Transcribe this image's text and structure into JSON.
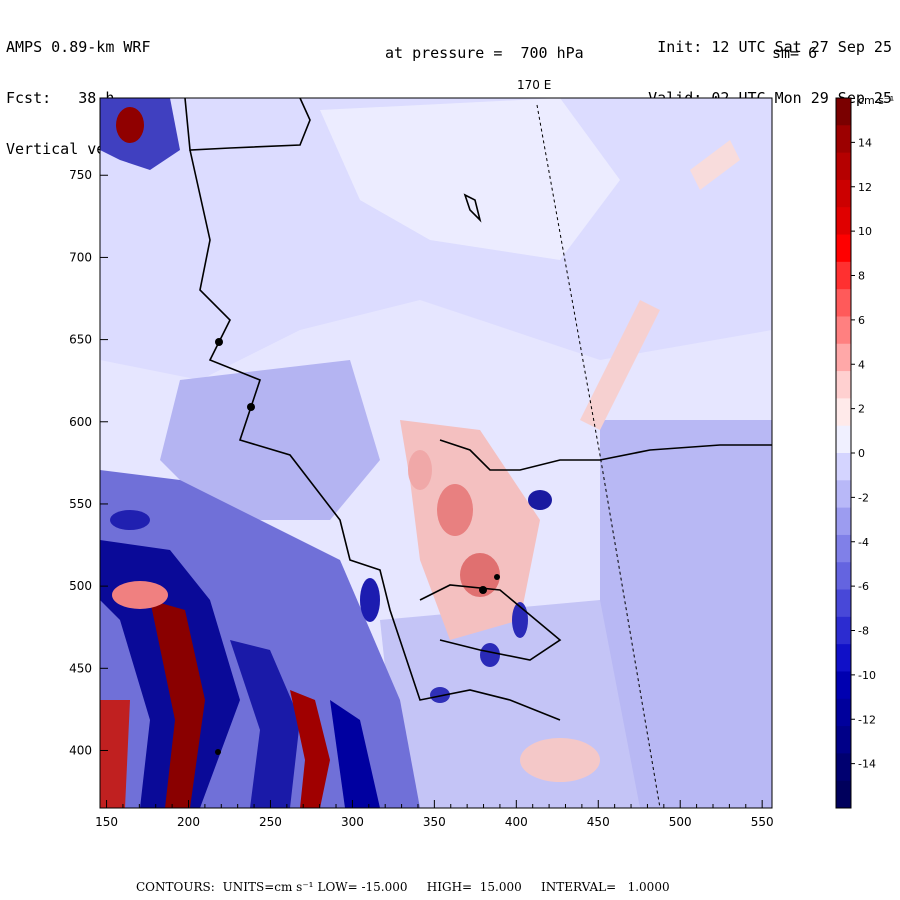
{
  "header": {
    "model": "AMPS 0.89-km WRF",
    "forecast_label": "Fcst:",
    "forecast_hours": "38 h",
    "field": "Vertical velocity",
    "init": "Init: 12 UTC Sat 27 Sep 25",
    "valid": "Valid: 02 UTC Mon 29 Sep 25",
    "pressure_level": "at pressure =  700 hPa",
    "smoothing": "sm= 6"
  },
  "map": {
    "meridian_label": "170 E",
    "x_ticks": [
      "150",
      "200",
      "250",
      "300",
      "350",
      "400",
      "450",
      "500",
      "550"
    ],
    "x_tick_values": [
      150,
      200,
      250,
      300,
      350,
      400,
      450,
      500,
      550
    ],
    "y_ticks": [
      "750",
      "700",
      "650",
      "600",
      "550",
      "500",
      "450",
      "400"
    ],
    "y_tick_values": [
      750,
      700,
      650,
      600,
      550,
      500,
      450,
      400
    ],
    "x_range": [
      146,
      556
    ],
    "y_range": [
      365,
      797
    ]
  },
  "colorbar": {
    "units": "cm s⁻¹",
    "labels": [
      "14",
      "12",
      "10",
      "8",
      "6",
      "4",
      "2",
      "0",
      "-2",
      "-4",
      "-6",
      "-8",
      "-10",
      "-12",
      "-14"
    ],
    "colors": [
      "#7a0000",
      "#9c0000",
      "#b50000",
      "#cc0000",
      "#e00000",
      "#ff0000",
      "#ff3030",
      "#ff5a5a",
      "#ff8080",
      "#ffa8a8",
      "#ffd0d0",
      "#ffeaea",
      "#f0f0ff",
      "#d4d4ff",
      "#b8b8f8",
      "#9c9cf0",
      "#8080e8",
      "#6464e0",
      "#4848d8",
      "#2c2cd0",
      "#1010c8",
      "#0000b0",
      "#00009c",
      "#000088",
      "#000070",
      "#00005c"
    ]
  },
  "footer": {
    "contours": "CONTOURS:",
    "units": "UNITS=cm s⁻¹",
    "low": "LOW= -15.000",
    "high": "HIGH=  15.000",
    "interval": "INTERVAL=   1.0000"
  }
}
